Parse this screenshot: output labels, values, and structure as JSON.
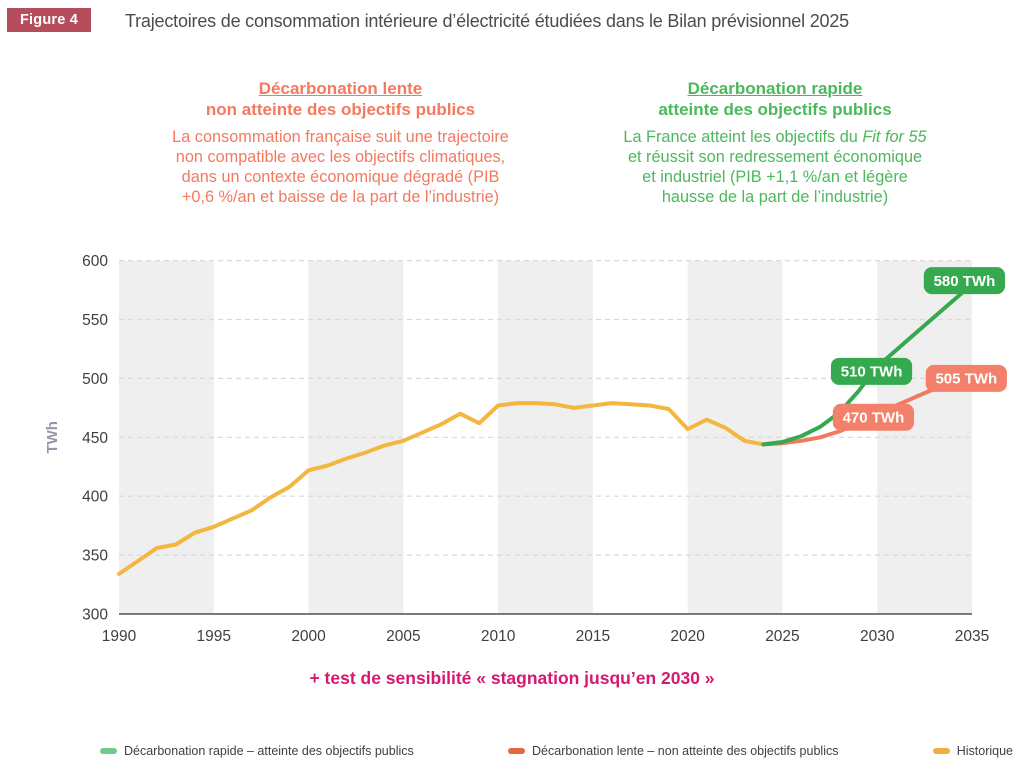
{
  "figure_label": "Figure 4",
  "title": "Trajectoires de consommation intérieure d’électricité étudiées dans le Bilan prévisionnel 2025",
  "scenario_slow": {
    "heading_line1": "Décarbonation lente",
    "heading_line2": "non atteinte des objectifs publics",
    "body": "La consommation française suit une trajectoire\nnon compatible avec les objectifs climatiques,\ndans un contexte économique dégradé (PIB\n+0,6 %/an et baisse de la part de l’industrie)",
    "color": "#F4795F"
  },
  "scenario_fast": {
    "heading_line1": "Décarbonation rapide",
    "heading_line2": "atteinte des objectifs publics",
    "body_part1": "La France atteint les objectifs du ",
    "body_italic": "Fit for 55",
    "body_part2": "\net réussit son redressement économique\net industriel (PIB +1,1 %/an et légère\nhausse de la part de l’industrie)",
    "color": "#4CB85C"
  },
  "sensitivity_note": "+ test de sensibilité « stagnation jusqu’en 2030 »",
  "legend": {
    "items": [
      {
        "label": "Décarbonation rapide – atteinte des objectifs publics",
        "color": "#74C98A"
      },
      {
        "label": "Décarbonation lente – non atteinte des objectifs publics",
        "color": "#E4673F"
      },
      {
        "label": "Historique",
        "color": "#F2AC3F"
      }
    ]
  },
  "chart_data": {
    "type": "line",
    "title": "Trajectoires de consommation intérieure d’électricité étudiées dans le Bilan prévisionnel 2025",
    "xlabel": "",
    "ylabel": "TWh",
    "ylabel_color": "#9D93A9",
    "xlim": [
      1990,
      2035
    ],
    "ylim": [
      300,
      600
    ],
    "yticks": [
      300,
      350,
      400,
      450,
      500,
      550,
      600
    ],
    "xticks": [
      1990,
      1995,
      2000,
      2005,
      2010,
      2015,
      2020,
      2025,
      2030,
      2035
    ],
    "grid": "dashed-horizontal",
    "band_color": "#EFEFF0",
    "shaded_bands": [
      [
        1990,
        1995
      ],
      [
        2000,
        2005
      ],
      [
        2010,
        2015
      ],
      [
        2020,
        2025
      ],
      [
        2030,
        2035
      ]
    ],
    "legend_position": "bottom",
    "series": [
      {
        "name": "Historique",
        "color": "#F3B63F",
        "width": 4,
        "x": [
          1990,
          1991,
          1992,
          1993,
          1994,
          1995,
          1996,
          1997,
          1998,
          1999,
          2000,
          2001,
          2002,
          2003,
          2004,
          2005,
          2006,
          2007,
          2008,
          2009,
          2010,
          2011,
          2012,
          2013,
          2014,
          2015,
          2016,
          2017,
          2018,
          2019,
          2020,
          2021,
          2022,
          2023,
          2024
        ],
        "values": [
          334,
          345,
          356,
          359,
          369,
          374,
          381,
          388,
          399,
          408,
          422,
          426,
          432,
          437,
          443,
          447,
          454,
          461,
          470,
          462,
          477,
          479,
          479,
          478,
          475,
          477,
          479,
          478,
          477,
          474,
          457,
          465,
          458,
          447,
          444
        ]
      },
      {
        "name": "Décarbonation lente – non atteinte des objectifs publics",
        "color": "#F1795F",
        "width": 4,
        "x": [
          2024,
          2025,
          2026,
          2027,
          2028,
          2029,
          2030,
          2031,
          2032,
          2033,
          2034,
          2035
        ],
        "values": [
          444,
          445,
          447,
          450,
          455,
          462,
          470,
          477,
          484,
          491,
          498,
          505
        ]
      },
      {
        "name": "Décarbonation rapide – atteinte des objectifs publics",
        "color": "#34A94E",
        "width": 4,
        "x": [
          2024,
          2025,
          2026,
          2027,
          2028,
          2029,
          2030,
          2031,
          2032,
          2033,
          2034,
          2035
        ],
        "values": [
          444,
          446,
          451,
          459,
          471,
          489,
          510,
          524,
          538,
          552,
          566,
          580
        ]
      }
    ],
    "annotations": [
      {
        "label": "470 TWh",
        "x": 2029.8,
        "y": 467,
        "color": "#F3806A"
      },
      {
        "label": "505 TWh",
        "x": 2034.7,
        "y": 500,
        "color": "#F3806A"
      },
      {
        "label": "510 TWh",
        "x": 2029.7,
        "y": 506,
        "color": "#34A94E"
      },
      {
        "label": "580 TWh",
        "x": 2034.6,
        "y": 583,
        "color": "#34A94E"
      }
    ]
  }
}
